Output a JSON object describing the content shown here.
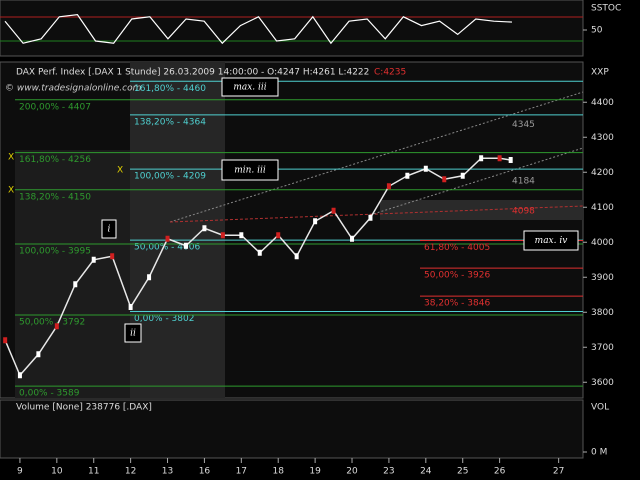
{
  "header": {
    "title": "DAX Perf. Index [.DAX 1 Stunde] 26.03.2009 14:00:00 - O:4247 H:4261 L:4222",
    "close": "C:4235",
    "copyright": "© www.tradesignalonline.com",
    "axis_name": "XXP"
  },
  "stochastic": {
    "label": "SSTOC",
    "ylim": [
      0,
      100
    ],
    "yticks": [
      50
    ],
    "values": [
      70,
      20,
      30,
      80,
      85,
      25,
      20,
      75,
      80,
      30,
      75,
      70,
      20,
      60,
      80,
      25,
      30,
      80,
      20,
      70,
      75,
      30,
      80,
      60,
      70,
      40,
      75,
      70,
      68
    ]
  },
  "volume": {
    "label": "Volume [None] 238776 [.DAX]",
    "axis_name": "VOL",
    "yticks": [
      {
        "value": 0,
        "label": "0 M"
      }
    ]
  },
  "chart_data": {
    "type": "line",
    "x": [
      -0.4,
      0,
      0.5,
      1,
      1.5,
      2,
      2.5,
      3,
      3.5,
      4,
      4.5,
      5,
      5.5,
      6,
      6.5,
      7,
      7.5,
      8,
      8.5,
      9,
      9.5,
      10,
      10.5,
      11,
      11.5,
      12,
      12.5,
      13,
      13.3
    ],
    "series": [
      {
        "color": "#e8e8e8",
        "values": [
          3720,
          3620,
          3680,
          3760,
          3880,
          3950,
          3960,
          3815,
          3900,
          4010,
          3990,
          4040,
          4020,
          4020,
          3970,
          4020,
          3960,
          4060,
          4090,
          4010,
          4070,
          4160,
          4190,
          4210,
          4180,
          4190,
          4240,
          4240,
          4235
        ]
      }
    ],
    "xlim": [
      -0.54,
      15.26
    ],
    "xticks": [
      {
        "value": 0,
        "label": "9"
      },
      {
        "value": 1,
        "label": "10"
      },
      {
        "value": 2,
        "label": "11"
      },
      {
        "value": 3,
        "label": "12"
      },
      {
        "value": 4,
        "label": "13"
      },
      {
        "value": 5,
        "label": "16"
      },
      {
        "value": 6,
        "label": "17"
      },
      {
        "value": 7,
        "label": "18"
      },
      {
        "value": 8,
        "label": "19"
      },
      {
        "value": 9,
        "label": "20"
      },
      {
        "value": 10,
        "label": "23"
      },
      {
        "value": 11,
        "label": "24"
      },
      {
        "value": 12,
        "label": "25"
      },
      {
        "value": 13,
        "label": "26"
      },
      {
        "value": 14.6,
        "label": "27"
      }
    ],
    "ylim": [
      3555,
      4515
    ],
    "yticks": [
      3600,
      3700,
      3800,
      3900,
      4000,
      4100,
      4200,
      4300,
      4400
    ],
    "levels": [
      {
        "value": 4460,
        "label": "161,80% - 4460",
        "color": "#4fd0d0"
      },
      {
        "value": 4364,
        "label": "138,20% - 4364",
        "color": "#4fd0d0"
      },
      {
        "value": 4209,
        "label": "100,00% - 4209",
        "color": "#4fd0d0"
      },
      {
        "value": 4006,
        "label": "50,00% - 4006",
        "color": "#4fd0d0"
      },
      {
        "value": 3802,
        "label": "0,00% - 3802",
        "color": "#4fd0d0"
      },
      {
        "value": 4407,
        "label": "200,00% - 4407",
        "color": "#2e9a2e"
      },
      {
        "value": 4256,
        "label": "161,80% - 4256",
        "color": "#2e9a2e"
      },
      {
        "value": 4150,
        "label": "138,20% - 4150",
        "color": "#2e9a2e"
      },
      {
        "value": 3995,
        "label": "100,00% - 3995",
        "color": "#2e9a2e"
      },
      {
        "value": 3792,
        "label": "50,00% - 3792",
        "color": "#2e9a2e"
      },
      {
        "value": 3589,
        "label": "0,00% - 3589",
        "color": "#2e9a2e"
      },
      {
        "value": 4005,
        "label": "61,80% - 4005",
        "color": "#e03030"
      },
      {
        "value": 3926,
        "label": "50,00% - 3926",
        "color": "#e03030"
      },
      {
        "value": 3846,
        "label": "38,20% - 3846",
        "color": "#e03030"
      }
    ],
    "price_labels": [
      {
        "value": 4345,
        "color": "#9a9a9a"
      },
      {
        "value": 4184,
        "color": "#9a9a9a"
      },
      {
        "value": 4098,
        "color": "#e03030"
      }
    ],
    "annotations": [
      "max. iii",
      "min. iii",
      "max. iv",
      "i",
      "ii"
    ]
  }
}
